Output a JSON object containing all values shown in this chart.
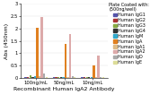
{
  "groups": [
    "100ng/mL",
    "50ng/mL",
    "10ng/mL"
  ],
  "series": [
    {
      "label": "Human IgG1",
      "color": "#5555aa",
      "values": [
        0.05,
        0.03,
        0.02
      ]
    },
    {
      "label": "Human IgG2",
      "color": "#aa3333",
      "values": [
        0.05,
        0.03,
        0.02
      ]
    },
    {
      "label": "Human IgG3",
      "color": "#88aa44",
      "values": [
        0.12,
        0.05,
        0.02
      ]
    },
    {
      "label": "Human IgG4",
      "color": "#333333",
      "values": [
        0.05,
        0.03,
        0.02
      ]
    },
    {
      "label": "Human IgM",
      "color": "#33aacc",
      "values": [
        0.07,
        0.05,
        0.02
      ]
    },
    {
      "label": "Human IgA",
      "color": "#e08020",
      "values": [
        2.02,
        1.38,
        0.52
      ]
    },
    {
      "label": "Human IgA1",
      "color": "#ddbb88",
      "values": [
        0.06,
        0.04,
        0.02
      ]
    },
    {
      "label": "Human IgA2",
      "color": "#ddaaaa",
      "values": [
        2.48,
        1.78,
        0.9
      ]
    },
    {
      "label": "Human IgD",
      "color": "#aaaaaa",
      "values": [
        0.18,
        0.07,
        0.02
      ]
    },
    {
      "label": "Human IgE",
      "color": "#dddd99",
      "values": [
        0.05,
        0.03,
        0.02
      ]
    }
  ],
  "xlabel": "Recombinant Human IgA2 Antibody",
  "ylabel": "Abs (450nm)",
  "ylim": [
    0,
    3.0
  ],
  "yticks": [
    0,
    0.5,
    1.0,
    1.5,
    2.0,
    2.5,
    3.0
  ],
  "legend_title": "Plate Coated with:\n(500ng/well)",
  "axis_fontsize": 4.5,
  "tick_fontsize": 3.8,
  "legend_fontsize": 3.5,
  "background_color": "#ffffff"
}
